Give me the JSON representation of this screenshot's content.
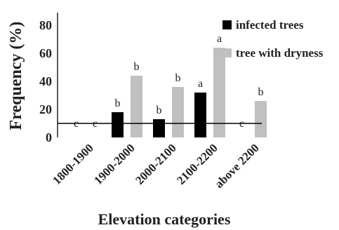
{
  "chart_data": {
    "type": "bar",
    "title": "",
    "xlabel": "Elevation categories",
    "ylabel": "Frequency (%)",
    "ylim": [
      0,
      80
    ],
    "yticks": [
      0,
      20,
      40,
      60,
      80
    ],
    "grid": false,
    "legend_position": "top-right",
    "categories": [
      "1800-1900",
      "1900-2000",
      "2000-2100",
      "2100-2200",
      "above 2200"
    ],
    "series": [
      {
        "name": "infected trees",
        "color": "#000000",
        "values": [
          0,
          18,
          13,
          32,
          0
        ],
        "labels": [
          "c",
          "b",
          "b",
          "a",
          "c"
        ]
      },
      {
        "name": "tree with dryness",
        "color": "#c0c0c0",
        "values": [
          0,
          44,
          36,
          64,
          26
        ],
        "labels": [
          "c",
          "b",
          "b",
          "a",
          "b"
        ]
      }
    ],
    "reference_line": 10
  }
}
